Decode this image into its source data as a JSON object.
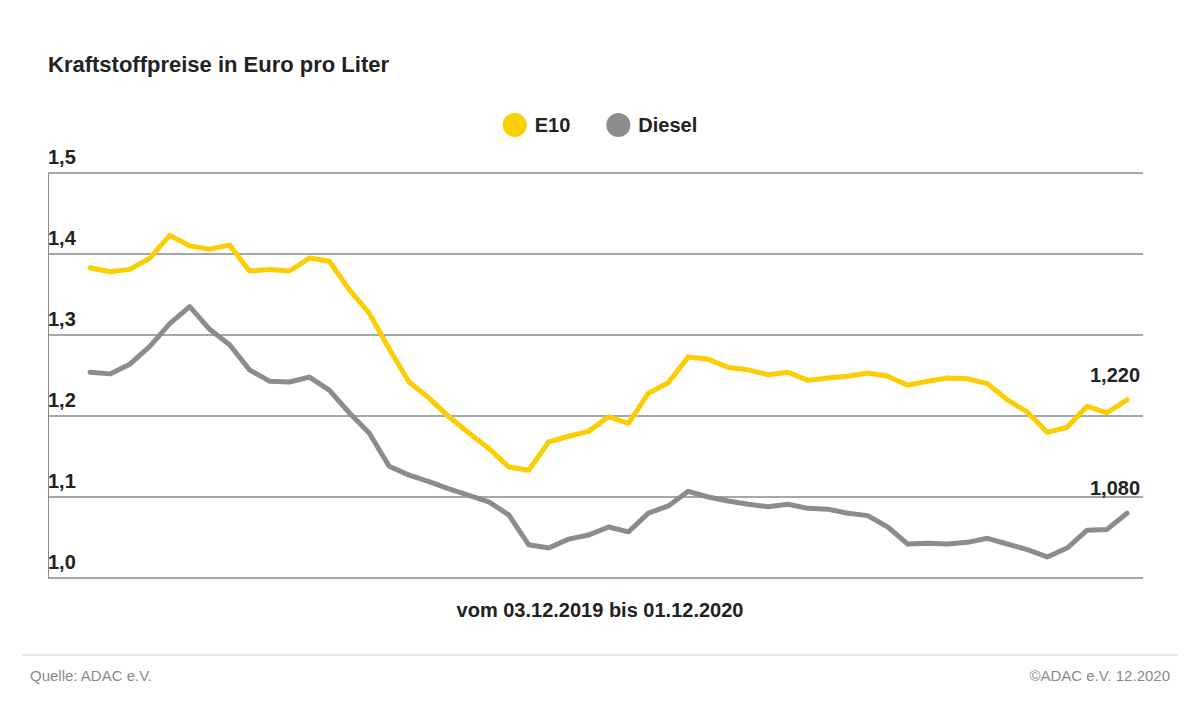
{
  "chart_data": {
    "type": "line",
    "title": "Kraftstoffpreise in Euro pro Liter",
    "x_label": "vom 03.12.2019 bis 01.12.2020",
    "source": "Quelle: ADAC e.V.",
    "credit": "©ADAC e.V. 12.2020",
    "legend": "top",
    "grid": true,
    "tick_labels": "y",
    "categories": [
      null,
      null,
      null,
      null,
      null,
      null,
      null,
      null,
      null,
      null,
      null,
      null,
      null,
      null,
      null,
      null,
      null,
      null,
      null,
      null,
      null,
      null,
      null,
      null,
      null,
      null,
      null,
      null,
      null,
      null,
      null,
      null,
      null,
      null,
      null,
      null,
      null,
      null,
      null,
      null,
      null,
      null,
      null,
      null,
      null,
      null,
      null,
      null,
      null,
      null,
      null,
      null,
      null
    ],
    "ylim": [
      1.0,
      1.5
    ],
    "yticks": [
      {
        "value": 1.0,
        "label": "1,0"
      },
      {
        "value": 1.1,
        "label": "1,1"
      },
      {
        "value": 1.2,
        "label": "1,2"
      },
      {
        "value": 1.3,
        "label": "1,3"
      },
      {
        "value": 1.4,
        "label": "1,4"
      },
      {
        "value": 1.5,
        "label": "1,5"
      }
    ],
    "series": [
      {
        "name": "E10",
        "color": "#fccd00",
        "values": [
          1.383,
          1.378,
          1.381,
          1.395,
          1.423,
          1.41,
          1.406,
          1.411,
          1.379,
          1.381,
          1.379,
          1.395,
          1.391,
          1.356,
          1.327,
          1.283,
          1.242,
          1.222,
          1.199,
          1.179,
          1.16,
          1.137,
          1.133,
          1.168,
          1.175,
          1.181,
          1.199,
          1.191,
          1.228,
          1.241,
          1.273,
          1.27,
          1.26,
          1.257,
          1.251,
          1.254,
          1.244,
          1.247,
          1.249,
          1.253,
          1.249,
          1.238,
          1.243,
          1.247,
          1.246,
          1.24,
          1.22,
          1.205,
          1.18,
          1.186,
          1.212,
          1.204,
          1.22
        ],
        "value_labels": [
          null,
          null,
          null,
          null,
          null,
          null,
          null,
          null,
          null,
          null,
          null,
          null,
          null,
          null,
          null,
          null,
          null,
          null,
          null,
          null,
          null,
          null,
          null,
          null,
          null,
          null,
          null,
          null,
          null,
          null,
          null,
          null,
          null,
          null,
          null,
          null,
          null,
          null,
          null,
          null,
          null,
          null,
          null,
          null,
          null,
          null,
          null,
          null,
          null,
          null,
          null,
          null,
          "1,220"
        ]
      },
      {
        "name": "Diesel",
        "color": "#8c8c8c",
        "values": [
          1.254,
          1.252,
          1.264,
          1.286,
          1.314,
          1.335,
          1.307,
          1.288,
          1.257,
          1.243,
          1.242,
          1.248,
          1.232,
          1.204,
          1.179,
          1.138,
          1.127,
          1.119,
          1.11,
          1.102,
          1.094,
          1.078,
          1.041,
          1.037,
          1.048,
          1.053,
          1.063,
          1.057,
          1.08,
          1.089,
          1.107,
          1.1,
          1.095,
          1.091,
          1.088,
          1.091,
          1.086,
          1.085,
          1.08,
          1.077,
          1.063,
          1.042,
          1.043,
          1.042,
          1.044,
          1.049,
          1.042,
          1.035,
          1.026,
          1.037,
          1.059,
          1.06,
          1.08
        ],
        "value_labels": [
          null,
          null,
          null,
          null,
          null,
          null,
          null,
          null,
          null,
          null,
          null,
          null,
          null,
          null,
          null,
          null,
          null,
          null,
          null,
          null,
          null,
          null,
          null,
          null,
          null,
          null,
          null,
          null,
          null,
          null,
          null,
          null,
          null,
          null,
          null,
          null,
          null,
          null,
          null,
          null,
          null,
          null,
          null,
          null,
          null,
          null,
          null,
          null,
          null,
          null,
          null,
          null,
          "1,080"
        ]
      }
    ]
  }
}
